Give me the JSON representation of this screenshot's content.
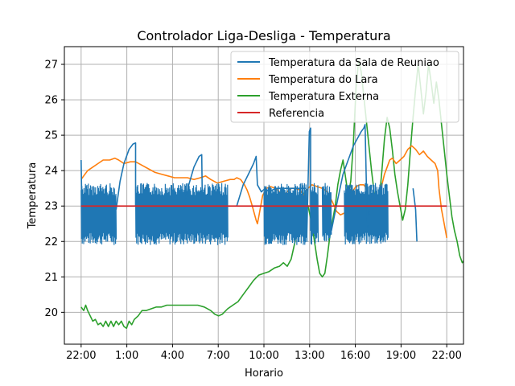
{
  "chart_data": {
    "type": "line",
    "title": "Controlador Liga-Desliga - Temperatura",
    "xlabel": "Horario",
    "ylabel": "Temperatura",
    "x_tick_labels": [
      "22:00",
      "1:00",
      "4:00",
      "7:00",
      "10:00",
      "13:00",
      "16:00",
      "19:00",
      "22:00"
    ],
    "x_range_hours": [
      -1.1,
      25.1
    ],
    "y_ticks": [
      20,
      21,
      22,
      23,
      24,
      25,
      26,
      27
    ],
    "ylim": [
      19.1,
      27.5
    ],
    "grid": true,
    "legend_position": "top-right",
    "series": [
      {
        "name": "Temperatura da Sala de Reuniao",
        "color": "#1f77b4",
        "style": "oscillating",
        "envelope_band": [
          22.0,
          23.6
        ],
        "segments": [
          {
            "oscillate": [
              [
                0.0,
                2.7
              ],
              [
                4.2,
                11.3
              ],
              [
                14.1,
                17.4
              ],
              [
                17.7,
                18.3
              ],
              [
                18.6,
                19.3
              ],
              [
                20.3,
                23.7
              ]
            ]
          },
          {
            "points": [
              [
                0.0,
                24.3
              ],
              [
                0.05,
                23.2
              ]
            ]
          },
          {
            "points": [
              [
                2.7,
                22.9
              ],
              [
                3.0,
                23.7
              ],
              [
                3.3,
                24.2
              ],
              [
                3.7,
                24.6
              ],
              [
                4.0,
                24.75
              ],
              [
                4.2,
                24.78
              ],
              [
                4.2,
                23.0
              ]
            ]
          },
          {
            "points": [
              [
                7.9,
                22.9
              ],
              [
                8.3,
                23.6
              ],
              [
                8.7,
                24.1
              ],
              [
                9.1,
                24.4
              ],
              [
                9.3,
                24.45
              ],
              [
                9.35,
                23.0
              ]
            ]
          },
          {
            "points": [
              [
                12.0,
                23.0
              ],
              [
                12.5,
                23.6
              ],
              [
                12.9,
                23.9
              ],
              [
                13.3,
                24.2
              ],
              [
                13.5,
                24.4
              ],
              [
                13.6,
                23.6
              ],
              [
                13.9,
                23.4
              ],
              [
                14.2,
                23.5
              ],
              [
                14.5,
                23.4
              ],
              [
                15.0,
                23.5
              ],
              [
                15.7,
                23.5
              ],
              [
                16.4,
                23.5
              ],
              [
                16.8,
                23.5
              ],
              [
                17.3,
                23.5
              ]
            ]
          },
          {
            "points": [
              [
                17.4,
                22.1
              ],
              [
                17.6,
                25.1
              ],
              [
                17.7,
                25.2
              ],
              [
                17.7,
                22.3
              ]
            ]
          },
          {
            "points": [
              [
                19.3,
                22.3
              ],
              [
                19.8,
                23.2
              ],
              [
                20.2,
                23.9
              ],
              [
                20.6,
                24.3
              ],
              [
                21.0,
                24.7
              ],
              [
                21.3,
                24.9
              ],
              [
                21.6,
                25.1
              ],
              [
                21.8,
                25.2
              ],
              [
                21.9,
                25.3
              ],
              [
                22.0,
                23.6
              ],
              [
                22.1,
                22.4
              ],
              [
                22.4,
                23.6
              ]
            ]
          },
          {
            "points": [
              [
                25.6,
                23.5
              ],
              [
                25.8,
                22.9
              ],
              [
                25.9,
                22.0
              ]
            ]
          }
        ]
      },
      {
        "name": "Temperatura do Lara",
        "color": "#ff7f0e",
        "points": [
          [
            0.0,
            23.75
          ],
          [
            0.2,
            23.85
          ],
          [
            0.5,
            24.0
          ],
          [
            0.9,
            24.1
          ],
          [
            1.3,
            24.2
          ],
          [
            1.7,
            24.3
          ],
          [
            2.2,
            24.3
          ],
          [
            2.6,
            24.35
          ],
          [
            2.9,
            24.3
          ],
          [
            3.3,
            24.2
          ],
          [
            3.8,
            24.25
          ],
          [
            4.2,
            24.25
          ],
          [
            4.7,
            24.15
          ],
          [
            5.2,
            24.05
          ],
          [
            5.7,
            23.95
          ],
          [
            6.2,
            23.9
          ],
          [
            6.7,
            23.85
          ],
          [
            7.2,
            23.8
          ],
          [
            7.7,
            23.8
          ],
          [
            8.2,
            23.8
          ],
          [
            8.7,
            23.75
          ],
          [
            9.2,
            23.8
          ],
          [
            9.6,
            23.85
          ],
          [
            10.0,
            23.75
          ],
          [
            10.5,
            23.65
          ],
          [
            11.0,
            23.7
          ],
          [
            11.5,
            23.75
          ],
          [
            11.8,
            23.75
          ],
          [
            12.0,
            23.8
          ],
          [
            12.3,
            23.75
          ],
          [
            12.6,
            23.6
          ],
          [
            12.8,
            23.45
          ],
          [
            13.0,
            23.25
          ],
          [
            13.2,
            23.0
          ],
          [
            13.35,
            22.8
          ],
          [
            13.5,
            22.6
          ],
          [
            13.6,
            22.5
          ],
          [
            13.7,
            22.7
          ],
          [
            13.85,
            23.0
          ],
          [
            14.0,
            23.3
          ],
          [
            14.3,
            23.5
          ],
          [
            14.6,
            23.55
          ],
          [
            15.0,
            23.5
          ],
          [
            15.3,
            23.4
          ],
          [
            15.6,
            23.3
          ],
          [
            15.9,
            23.4
          ],
          [
            16.2,
            23.5
          ],
          [
            16.5,
            23.5
          ],
          [
            16.9,
            23.45
          ],
          [
            17.2,
            23.3
          ],
          [
            17.5,
            23.5
          ],
          [
            17.8,
            23.6
          ],
          [
            18.2,
            23.55
          ],
          [
            18.6,
            23.5
          ],
          [
            19.0,
            23.4
          ],
          [
            19.4,
            23.1
          ],
          [
            19.7,
            22.85
          ],
          [
            20.0,
            22.75
          ],
          [
            20.3,
            22.8
          ],
          [
            20.6,
            23.1
          ],
          [
            20.9,
            23.4
          ],
          [
            21.2,
            23.55
          ],
          [
            21.5,
            23.6
          ],
          [
            21.8,
            23.6
          ],
          [
            22.0,
            23.5
          ],
          [
            22.2,
            23.1
          ],
          [
            22.4,
            22.8
          ],
          [
            22.6,
            22.85
          ],
          [
            22.9,
            23.2
          ],
          [
            23.2,
            23.6
          ],
          [
            23.4,
            23.9
          ],
          [
            23.6,
            24.1
          ],
          [
            23.8,
            24.3
          ],
          [
            24.0,
            24.35
          ],
          [
            24.3,
            24.2
          ],
          [
            24.6,
            24.3
          ],
          [
            24.9,
            24.4
          ],
          [
            25.2,
            24.6
          ],
          [
            25.5,
            24.7
          ],
          [
            25.8,
            24.6
          ],
          [
            26.1,
            24.45
          ],
          [
            26.4,
            24.55
          ],
          [
            26.7,
            24.4
          ],
          [
            27.0,
            24.3
          ],
          [
            27.3,
            24.2
          ],
          [
            27.5,
            24.0
          ],
          [
            27.6,
            23.5
          ],
          [
            27.8,
            22.9
          ],
          [
            28.0,
            22.5
          ],
          [
            28.2,
            22.1
          ]
        ]
      },
      {
        "name": "Temperatura Externa",
        "color": "#2ca02c",
        "points": [
          [
            0.0,
            20.15
          ],
          [
            0.2,
            20.05
          ],
          [
            0.35,
            20.2
          ],
          [
            0.5,
            20.05
          ],
          [
            0.7,
            19.9
          ],
          [
            0.9,
            19.75
          ],
          [
            1.1,
            19.8
          ],
          [
            1.3,
            19.65
          ],
          [
            1.5,
            19.7
          ],
          [
            1.7,
            19.6
          ],
          [
            1.9,
            19.75
          ],
          [
            2.1,
            19.6
          ],
          [
            2.3,
            19.75
          ],
          [
            2.5,
            19.6
          ],
          [
            2.7,
            19.75
          ],
          [
            2.9,
            19.65
          ],
          [
            3.1,
            19.75
          ],
          [
            3.3,
            19.6
          ],
          [
            3.5,
            19.55
          ],
          [
            3.7,
            19.75
          ],
          [
            3.9,
            19.65
          ],
          [
            4.1,
            19.8
          ],
          [
            4.4,
            19.9
          ],
          [
            4.7,
            20.05
          ],
          [
            5.0,
            20.05
          ],
          [
            5.4,
            20.1
          ],
          [
            5.8,
            20.15
          ],
          [
            6.2,
            20.15
          ],
          [
            6.6,
            20.2
          ],
          [
            7.0,
            20.2
          ],
          [
            7.5,
            20.2
          ],
          [
            8.0,
            20.2
          ],
          [
            8.5,
            20.2
          ],
          [
            9.0,
            20.2
          ],
          [
            9.5,
            20.15
          ],
          [
            10.0,
            20.05
          ],
          [
            10.3,
            19.95
          ],
          [
            10.6,
            19.9
          ],
          [
            10.9,
            19.95
          ],
          [
            11.3,
            20.1
          ],
          [
            11.7,
            20.2
          ],
          [
            12.1,
            20.3
          ],
          [
            12.5,
            20.5
          ],
          [
            12.9,
            20.7
          ],
          [
            13.3,
            20.9
          ],
          [
            13.7,
            21.05
          ],
          [
            14.1,
            21.1
          ],
          [
            14.5,
            21.15
          ],
          [
            14.9,
            21.25
          ],
          [
            15.3,
            21.3
          ],
          [
            15.6,
            21.4
          ],
          [
            15.9,
            21.3
          ],
          [
            16.2,
            21.5
          ],
          [
            16.5,
            22.0
          ],
          [
            16.8,
            22.8
          ],
          [
            17.1,
            23.4
          ],
          [
            17.5,
            23.0
          ],
          [
            17.8,
            22.5
          ],
          [
            18.0,
            22.0
          ],
          [
            18.2,
            21.5
          ],
          [
            18.4,
            21.1
          ],
          [
            18.6,
            21.0
          ],
          [
            18.8,
            21.1
          ],
          [
            19.0,
            21.6
          ],
          [
            19.2,
            22.2
          ],
          [
            19.4,
            22.6
          ],
          [
            19.6,
            23.0
          ],
          [
            19.8,
            23.6
          ],
          [
            20.0,
            24.0
          ],
          [
            20.2,
            24.3
          ],
          [
            20.4,
            23.8
          ],
          [
            20.6,
            23.3
          ],
          [
            20.8,
            23.7
          ],
          [
            21.0,
            24.8
          ],
          [
            21.2,
            26.3
          ],
          [
            21.4,
            27.1
          ],
          [
            21.6,
            26.8
          ],
          [
            21.8,
            26.1
          ],
          [
            22.0,
            25.4
          ],
          [
            22.2,
            24.7
          ],
          [
            22.4,
            24.0
          ],
          [
            22.6,
            23.4
          ],
          [
            22.8,
            22.9
          ],
          [
            23.0,
            23.2
          ],
          [
            23.2,
            24.0
          ],
          [
            23.4,
            24.9
          ],
          [
            23.6,
            25.5
          ],
          [
            23.8,
            25.2
          ],
          [
            24.0,
            24.6
          ],
          [
            24.2,
            23.9
          ],
          [
            24.4,
            23.4
          ],
          [
            24.6,
            23.0
          ],
          [
            24.8,
            22.6
          ],
          [
            25.0,
            22.9
          ],
          [
            25.2,
            23.6
          ],
          [
            25.4,
            24.6
          ],
          [
            25.6,
            25.5
          ],
          [
            25.8,
            26.3
          ],
          [
            26.0,
            27.0
          ],
          [
            26.2,
            26.3
          ],
          [
            26.4,
            25.6
          ],
          [
            26.6,
            26.2
          ],
          [
            26.8,
            27.0
          ],
          [
            27.0,
            26.5
          ],
          [
            27.2,
            25.9
          ],
          [
            27.4,
            26.5
          ],
          [
            27.6,
            26.0
          ],
          [
            27.8,
            25.3
          ],
          [
            28.0,
            24.6
          ],
          [
            28.2,
            23.9
          ],
          [
            28.4,
            23.3
          ],
          [
            28.6,
            22.7
          ],
          [
            28.8,
            22.3
          ],
          [
            29.0,
            22.0
          ],
          [
            29.2,
            21.6
          ],
          [
            29.4,
            21.4
          ],
          [
            29.6,
            21.5
          ],
          [
            29.8,
            21.9
          ],
          [
            30.0,
            22.2
          ],
          [
            30.2,
            21.8
          ],
          [
            30.4,
            21.4
          ],
          [
            30.6,
            21.2
          ],
          [
            30.8,
            21.3
          ],
          [
            31.0,
            21.1
          ],
          [
            31.2,
            21.2
          ],
          [
            31.4,
            21.2
          ],
          [
            31.6,
            21.2
          ]
        ]
      },
      {
        "name": "Referencia",
        "color": "#d62728",
        "points": [
          [
            0.0,
            23.0
          ],
          [
            24.0,
            23.0
          ]
        ]
      }
    ]
  }
}
